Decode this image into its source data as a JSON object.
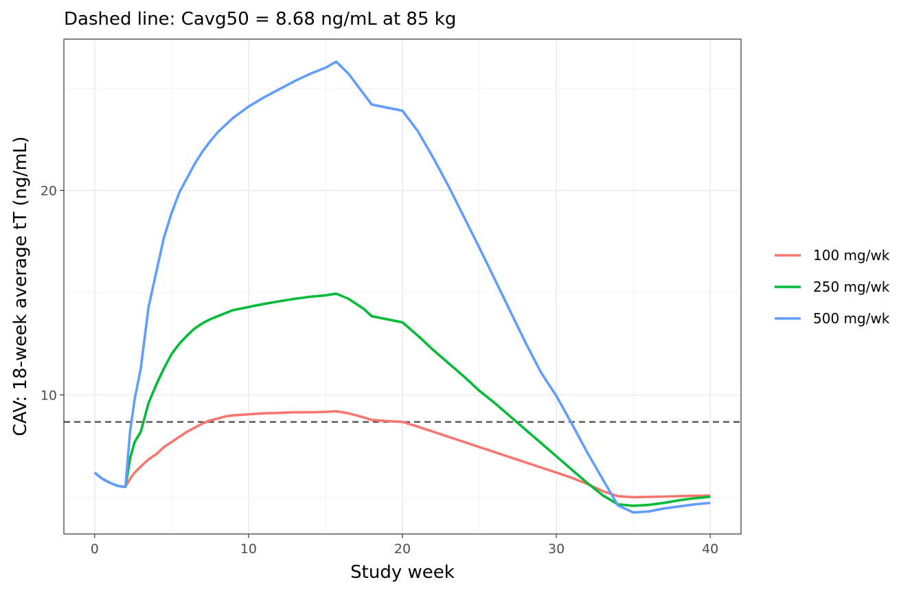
{
  "chart_data": {
    "type": "line",
    "title": "Dashed line: Cavg50 = 8.68 ng/mL at 85 kg",
    "xlabel": "Study week",
    "ylabel": "CAV: 18-week average tT (ng/mL)",
    "xlim": [
      -2,
      42
    ],
    "ylim": [
      3.2,
      27.4
    ],
    "x_ticks": [
      0,
      10,
      20,
      30,
      40
    ],
    "y_ticks": [
      10,
      20
    ],
    "x_minor_ticks": [
      5,
      15,
      25,
      35
    ],
    "y_minor_ticks": [
      5,
      15,
      25
    ],
    "grid": true,
    "legend_position": "right",
    "reference_line": {
      "y": 8.68,
      "style": "dashed",
      "color": "#4d4d4d"
    },
    "series": [
      {
        "name": "100 mg/wk",
        "color": "#F8766D",
        "points": [
          [
            0,
            6.2
          ],
          [
            0.5,
            5.9
          ],
          [
            1,
            5.7
          ],
          [
            1.5,
            5.55
          ],
          [
            2,
            5.5
          ],
          [
            2.3,
            5.9
          ],
          [
            2.6,
            6.2
          ],
          [
            3,
            6.5
          ],
          [
            3.5,
            6.85
          ],
          [
            4,
            7.1
          ],
          [
            4.5,
            7.45
          ],
          [
            5,
            7.7
          ],
          [
            5.5,
            7.95
          ],
          [
            6,
            8.2
          ],
          [
            6.5,
            8.4
          ],
          [
            7,
            8.6
          ],
          [
            7.5,
            8.75
          ],
          [
            8,
            8.85
          ],
          [
            8.5,
            8.95
          ],
          [
            9,
            9.0
          ],
          [
            10,
            9.05
          ],
          [
            11,
            9.1
          ],
          [
            12,
            9.12
          ],
          [
            13,
            9.15
          ],
          [
            14,
            9.15
          ],
          [
            15,
            9.17
          ],
          [
            15.7,
            9.2
          ],
          [
            16.5,
            9.1
          ],
          [
            17.5,
            8.9
          ],
          [
            18,
            8.78
          ],
          [
            19,
            8.72
          ],
          [
            20,
            8.68
          ],
          [
            21,
            8.45
          ],
          [
            22,
            8.2
          ],
          [
            23,
            7.95
          ],
          [
            24,
            7.7
          ],
          [
            25,
            7.45
          ],
          [
            26,
            7.2
          ],
          [
            27,
            6.95
          ],
          [
            28,
            6.7
          ],
          [
            29,
            6.45
          ],
          [
            30,
            6.2
          ],
          [
            31,
            5.95
          ],
          [
            32,
            5.65
          ],
          [
            33,
            5.3
          ],
          [
            34,
            5.05
          ],
          [
            35,
            5.0
          ],
          [
            37,
            5.03
          ],
          [
            39,
            5.07
          ],
          [
            40,
            5.08
          ]
        ]
      },
      {
        "name": "250 mg/wk",
        "color": "#00BA38",
        "points": [
          [
            0,
            6.2
          ],
          [
            0.5,
            5.9
          ],
          [
            1,
            5.7
          ],
          [
            1.5,
            5.55
          ],
          [
            2,
            5.5
          ],
          [
            2.3,
            6.9
          ],
          [
            2.6,
            7.7
          ],
          [
            3,
            8.2
          ],
          [
            3.5,
            9.6
          ],
          [
            4,
            10.5
          ],
          [
            4.5,
            11.3
          ],
          [
            5,
            12.0
          ],
          [
            5.5,
            12.5
          ],
          [
            6,
            12.9
          ],
          [
            6.5,
            13.25
          ],
          [
            7,
            13.5
          ],
          [
            7.5,
            13.7
          ],
          [
            8,
            13.85
          ],
          [
            8.5,
            14.0
          ],
          [
            9,
            14.15
          ],
          [
            10,
            14.3
          ],
          [
            11,
            14.45
          ],
          [
            12,
            14.58
          ],
          [
            13,
            14.7
          ],
          [
            14,
            14.8
          ],
          [
            15,
            14.87
          ],
          [
            15.7,
            14.95
          ],
          [
            16.5,
            14.7
          ],
          [
            17.5,
            14.2
          ],
          [
            18,
            13.85
          ],
          [
            19,
            13.7
          ],
          [
            20,
            13.55
          ],
          [
            21,
            12.9
          ],
          [
            22,
            12.2
          ],
          [
            23,
            11.55
          ],
          [
            24,
            10.9
          ],
          [
            25,
            10.2
          ],
          [
            26,
            9.6
          ],
          [
            27,
            8.95
          ],
          [
            28,
            8.3
          ],
          [
            29,
            7.65
          ],
          [
            30,
            7.0
          ],
          [
            31,
            6.35
          ],
          [
            32,
            5.7
          ],
          [
            33,
            5.1
          ],
          [
            34,
            4.65
          ],
          [
            35,
            4.58
          ],
          [
            36,
            4.62
          ],
          [
            37,
            4.72
          ],
          [
            38,
            4.85
          ],
          [
            39,
            4.95
          ],
          [
            40,
            5.02
          ]
        ]
      },
      {
        "name": "500 mg/wk",
        "color": "#619CFF",
        "points": [
          [
            0,
            6.2
          ],
          [
            0.5,
            5.9
          ],
          [
            1,
            5.7
          ],
          [
            1.5,
            5.55
          ],
          [
            2,
            5.5
          ],
          [
            2.3,
            8.2
          ],
          [
            2.6,
            9.8
          ],
          [
            3,
            11.3
          ],
          [
            3.5,
            14.3
          ],
          [
            4,
            16.0
          ],
          [
            4.5,
            17.7
          ],
          [
            5,
            18.9
          ],
          [
            5.5,
            19.9
          ],
          [
            6,
            20.6
          ],
          [
            6.5,
            21.3
          ],
          [
            7,
            21.9
          ],
          [
            7.5,
            22.4
          ],
          [
            8,
            22.85
          ],
          [
            8.5,
            23.2
          ],
          [
            9,
            23.55
          ],
          [
            10,
            24.1
          ],
          [
            11,
            24.55
          ],
          [
            12,
            24.95
          ],
          [
            13,
            25.35
          ],
          [
            14,
            25.7
          ],
          [
            15,
            26.0
          ],
          [
            15.7,
            26.3
          ],
          [
            16.5,
            25.7
          ],
          [
            17.5,
            24.7
          ],
          [
            18,
            24.2
          ],
          [
            19,
            24.05
          ],
          [
            20,
            23.9
          ],
          [
            21,
            22.9
          ],
          [
            22,
            21.6
          ],
          [
            23,
            20.2
          ],
          [
            24,
            18.7
          ],
          [
            25,
            17.2
          ],
          [
            26,
            15.65
          ],
          [
            27,
            14.1
          ],
          [
            28,
            12.55
          ],
          [
            29,
            11.1
          ],
          [
            30,
            9.95
          ],
          [
            31,
            8.6
          ],
          [
            32,
            7.2
          ],
          [
            33,
            5.9
          ],
          [
            34,
            4.6
          ],
          [
            35,
            4.25
          ],
          [
            36,
            4.3
          ],
          [
            37,
            4.45
          ],
          [
            38,
            4.55
          ],
          [
            39,
            4.65
          ],
          [
            40,
            4.72
          ]
        ]
      }
    ]
  }
}
